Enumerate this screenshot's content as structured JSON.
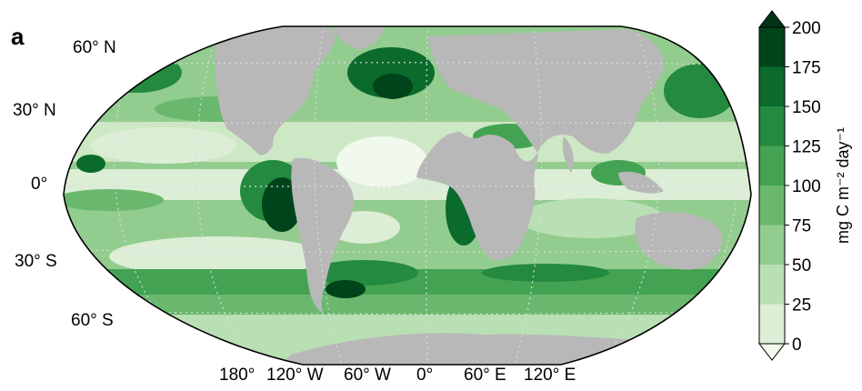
{
  "figure": {
    "panel_label": "a",
    "latitude_labels": [
      "60° N",
      "30° N",
      "0°",
      "30° S",
      "60° S"
    ],
    "longitude_labels": [
      "180°",
      "120° W",
      "60° W",
      "0°",
      "60° E",
      "120° E"
    ],
    "colorbar": {
      "unit_label": "mg C m⁻² day⁻¹",
      "ticks": [
        "200",
        "175",
        "150",
        "125",
        "100",
        "75",
        "50",
        "25",
        "0"
      ],
      "levels": [
        0,
        25,
        50,
        75,
        100,
        125,
        150,
        175,
        200
      ],
      "extend": "both"
    },
    "colors": {
      "land": "#b8b8b8",
      "grid": "#dcdcdc",
      "outline": "#000000",
      "scale": [
        "#f1f9ed",
        "#dceed6",
        "#b9dfb4",
        "#93cc8f",
        "#6ab86d",
        "#43a353",
        "#238a3f",
        "#0b6b2d",
        "#00441b",
        "#003417"
      ]
    }
  }
}
